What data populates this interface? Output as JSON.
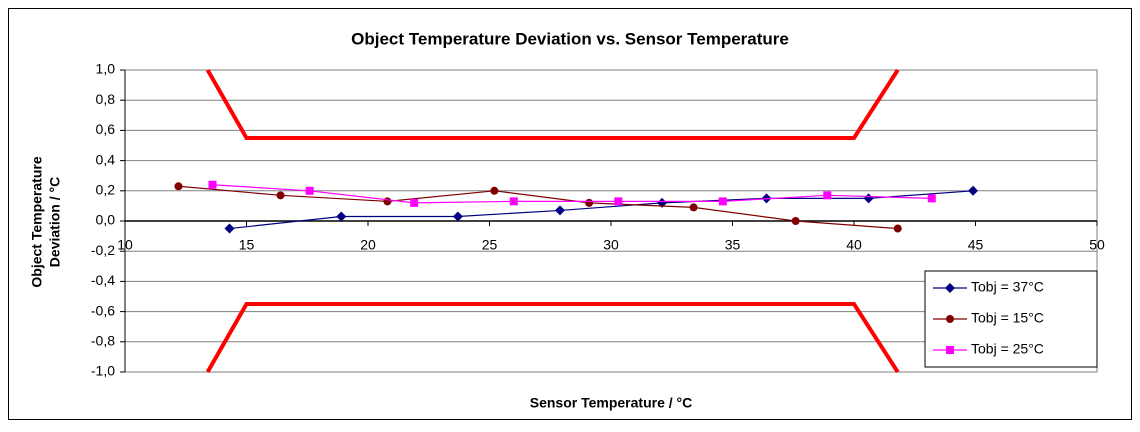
{
  "chart_data": {
    "type": "line",
    "title": "Object Temperature Deviation vs. Sensor Temperature",
    "x_label": "Sensor Temperature  / °C",
    "y_label_lines": [
      "Object Temperature",
      "Deviation / °C"
    ],
    "xlim": [
      10,
      50
    ],
    "xticks": [
      10,
      15,
      20,
      25,
      30,
      35,
      40,
      45,
      50
    ],
    "ylim": [
      -1.0,
      1.0
    ],
    "yticks": [
      {
        "value": -1.0,
        "label": "-1,0"
      },
      {
        "value": -0.8,
        "label": "-0,8"
      },
      {
        "value": -0.6,
        "label": "-0,6"
      },
      {
        "value": -0.4,
        "label": "-0,4"
      },
      {
        "value": -0.2,
        "label": "-0,2"
      },
      {
        "value": 0,
        "label": "0,0"
      },
      {
        "value": 0.2,
        "label": "0,2"
      },
      {
        "value": 0.4,
        "label": "0,4"
      },
      {
        "value": 0.6,
        "label": "0,6"
      },
      {
        "value": 0.8,
        "label": "0,8"
      },
      {
        "value": 1.0,
        "label": "1,0"
      }
    ],
    "grid": true,
    "legend": "lower right",
    "series": [
      {
        "name": "Tobj = 37°C",
        "color": "#000080",
        "marker": "diamond",
        "x": [
          14.3,
          18.9,
          23.7,
          27.9,
          32.1,
          36.4,
          40.6,
          44.9
        ],
        "values": [
          -0.05,
          0.03,
          0.03,
          0.07,
          0.12,
          0.15,
          0.15,
          0.2
        ]
      },
      {
        "name": "Tobj = 15°C",
        "color": "#800000",
        "marker": "circle",
        "x": [
          12.2,
          16.4,
          20.8,
          25.2,
          29.1,
          33.4,
          37.6,
          41.8
        ],
        "values": [
          0.23,
          0.17,
          0.13,
          0.2,
          0.12,
          0.09,
          0.0,
          -0.05
        ]
      },
      {
        "name": "Tobj = 25°C",
        "color": "#ff00ff",
        "marker": "square",
        "x": [
          13.6,
          17.6,
          21.9,
          26.0,
          30.3,
          34.6,
          38.9,
          43.2
        ],
        "values": [
          0.24,
          0.2,
          0.12,
          0.13,
          0.13,
          0.13,
          0.17,
          0.15
        ]
      },
      {
        "color": "#ff0000",
        "marker": "none",
        "width": 4,
        "x": [
          13.4,
          15,
          40,
          41.8
        ],
        "values": [
          1.0,
          0.55,
          0.55,
          1.0
        ]
      },
      {
        "color": "#ff0000",
        "marker": "none",
        "width": 4,
        "x": [
          13.4,
          15,
          40,
          41.8
        ],
        "values": [
          -1.0,
          -0.55,
          -0.55,
          -1.0
        ]
      }
    ]
  }
}
